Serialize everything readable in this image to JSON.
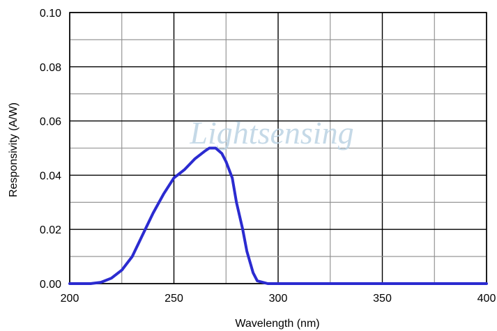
{
  "chart_data": {
    "type": "line",
    "title": "",
    "xlabel": "Wavelength  (nm)",
    "ylabel": "Responsivity (A/W)",
    "xlim": [
      200,
      400
    ],
    "ylim": [
      0,
      0.1
    ],
    "x_ticks": [
      200,
      250,
      300,
      350,
      400
    ],
    "x_tick_labels": [
      "200",
      "250",
      "300",
      "350",
      "400"
    ],
    "y_ticks": [
      0,
      0.02,
      0.04,
      0.06,
      0.08,
      0.1
    ],
    "y_tick_labels": [
      "0.00",
      "0.02",
      "0.04",
      "0.06",
      "0.08",
      "0.10"
    ],
    "grid": true,
    "watermark": "Lightsensing",
    "series": [
      {
        "color": "#2b2bd0",
        "x": [
          200,
          210,
          215,
          220,
          225,
          230,
          235,
          240,
          245,
          250,
          255,
          260,
          265,
          267,
          270,
          273,
          275,
          278,
          280,
          283,
          285,
          288,
          290,
          295,
          300,
          350,
          400
        ],
        "y": [
          0,
          0,
          0.0005,
          0.002,
          0.005,
          0.01,
          0.018,
          0.026,
          0.033,
          0.039,
          0.042,
          0.046,
          0.049,
          0.05,
          0.05,
          0.048,
          0.045,
          0.039,
          0.03,
          0.02,
          0.012,
          0.004,
          0.001,
          0,
          0,
          0,
          0
        ]
      }
    ]
  }
}
